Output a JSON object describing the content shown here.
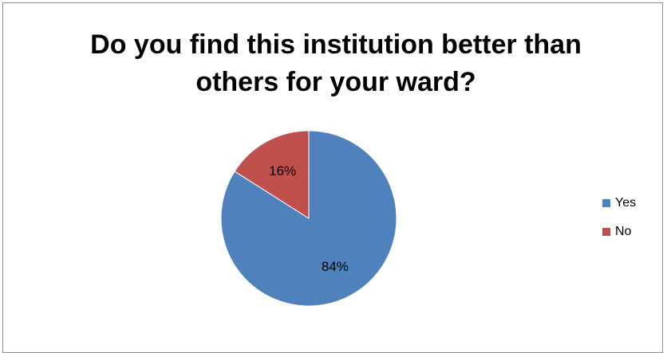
{
  "chart_data": {
    "type": "pie",
    "title_lines": [
      "Do you find this institution better than",
      "others for your ward?"
    ],
    "categories": [
      "Yes",
      "No"
    ],
    "values": [
      84,
      16
    ],
    "labels": [
      "84%",
      "16%"
    ],
    "colors": [
      "#4f81bd",
      "#c0504d"
    ],
    "legend_position": "right",
    "start_angle": "12 o'clock, clockwise"
  }
}
